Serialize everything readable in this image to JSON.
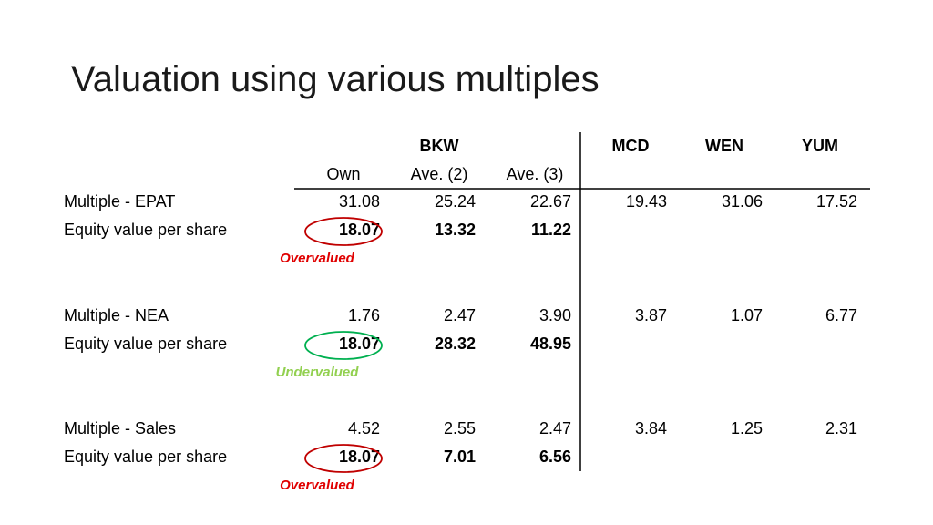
{
  "title": "Valuation using various multiples",
  "table": {
    "group_header": "BKW",
    "peers": [
      "MCD",
      "WEN",
      "YUM"
    ],
    "columns": [
      "Own",
      "Ave. (2)",
      "Ave. (3)"
    ],
    "sections": [
      {
        "multiple": {
          "label": "Multiple - EPAT",
          "values": [
            "31.08",
            "25.24",
            "22.67",
            "19.43",
            "31.06",
            "17.52"
          ]
        },
        "equity": {
          "label": "Equity value per share",
          "values": [
            "18.07",
            "13.32",
            "11.22"
          ]
        },
        "verdict": "Overvalued",
        "color": "#c00000",
        "verdict_color": "#e00000"
      },
      {
        "multiple": {
          "label": "Multiple - NEA",
          "values": [
            "1.76",
            "2.47",
            "3.90",
            "3.87",
            "1.07",
            "6.77"
          ]
        },
        "equity": {
          "label": "Equity value per share",
          "values": [
            "18.07",
            "28.32",
            "48.95"
          ]
        },
        "verdict": "Undervalued",
        "color": "#00b050",
        "verdict_color": "#92d050"
      },
      {
        "multiple": {
          "label": "Multiple - Sales",
          "values": [
            "4.52",
            "2.55",
            "2.47",
            "3.84",
            "1.25",
            "2.31"
          ]
        },
        "equity": {
          "label": "Equity value per share",
          "values": [
            "18.07",
            "7.01",
            "6.56"
          ]
        },
        "verdict": "Overvalued",
        "color": "#c00000",
        "verdict_color": "#e00000"
      }
    ]
  }
}
